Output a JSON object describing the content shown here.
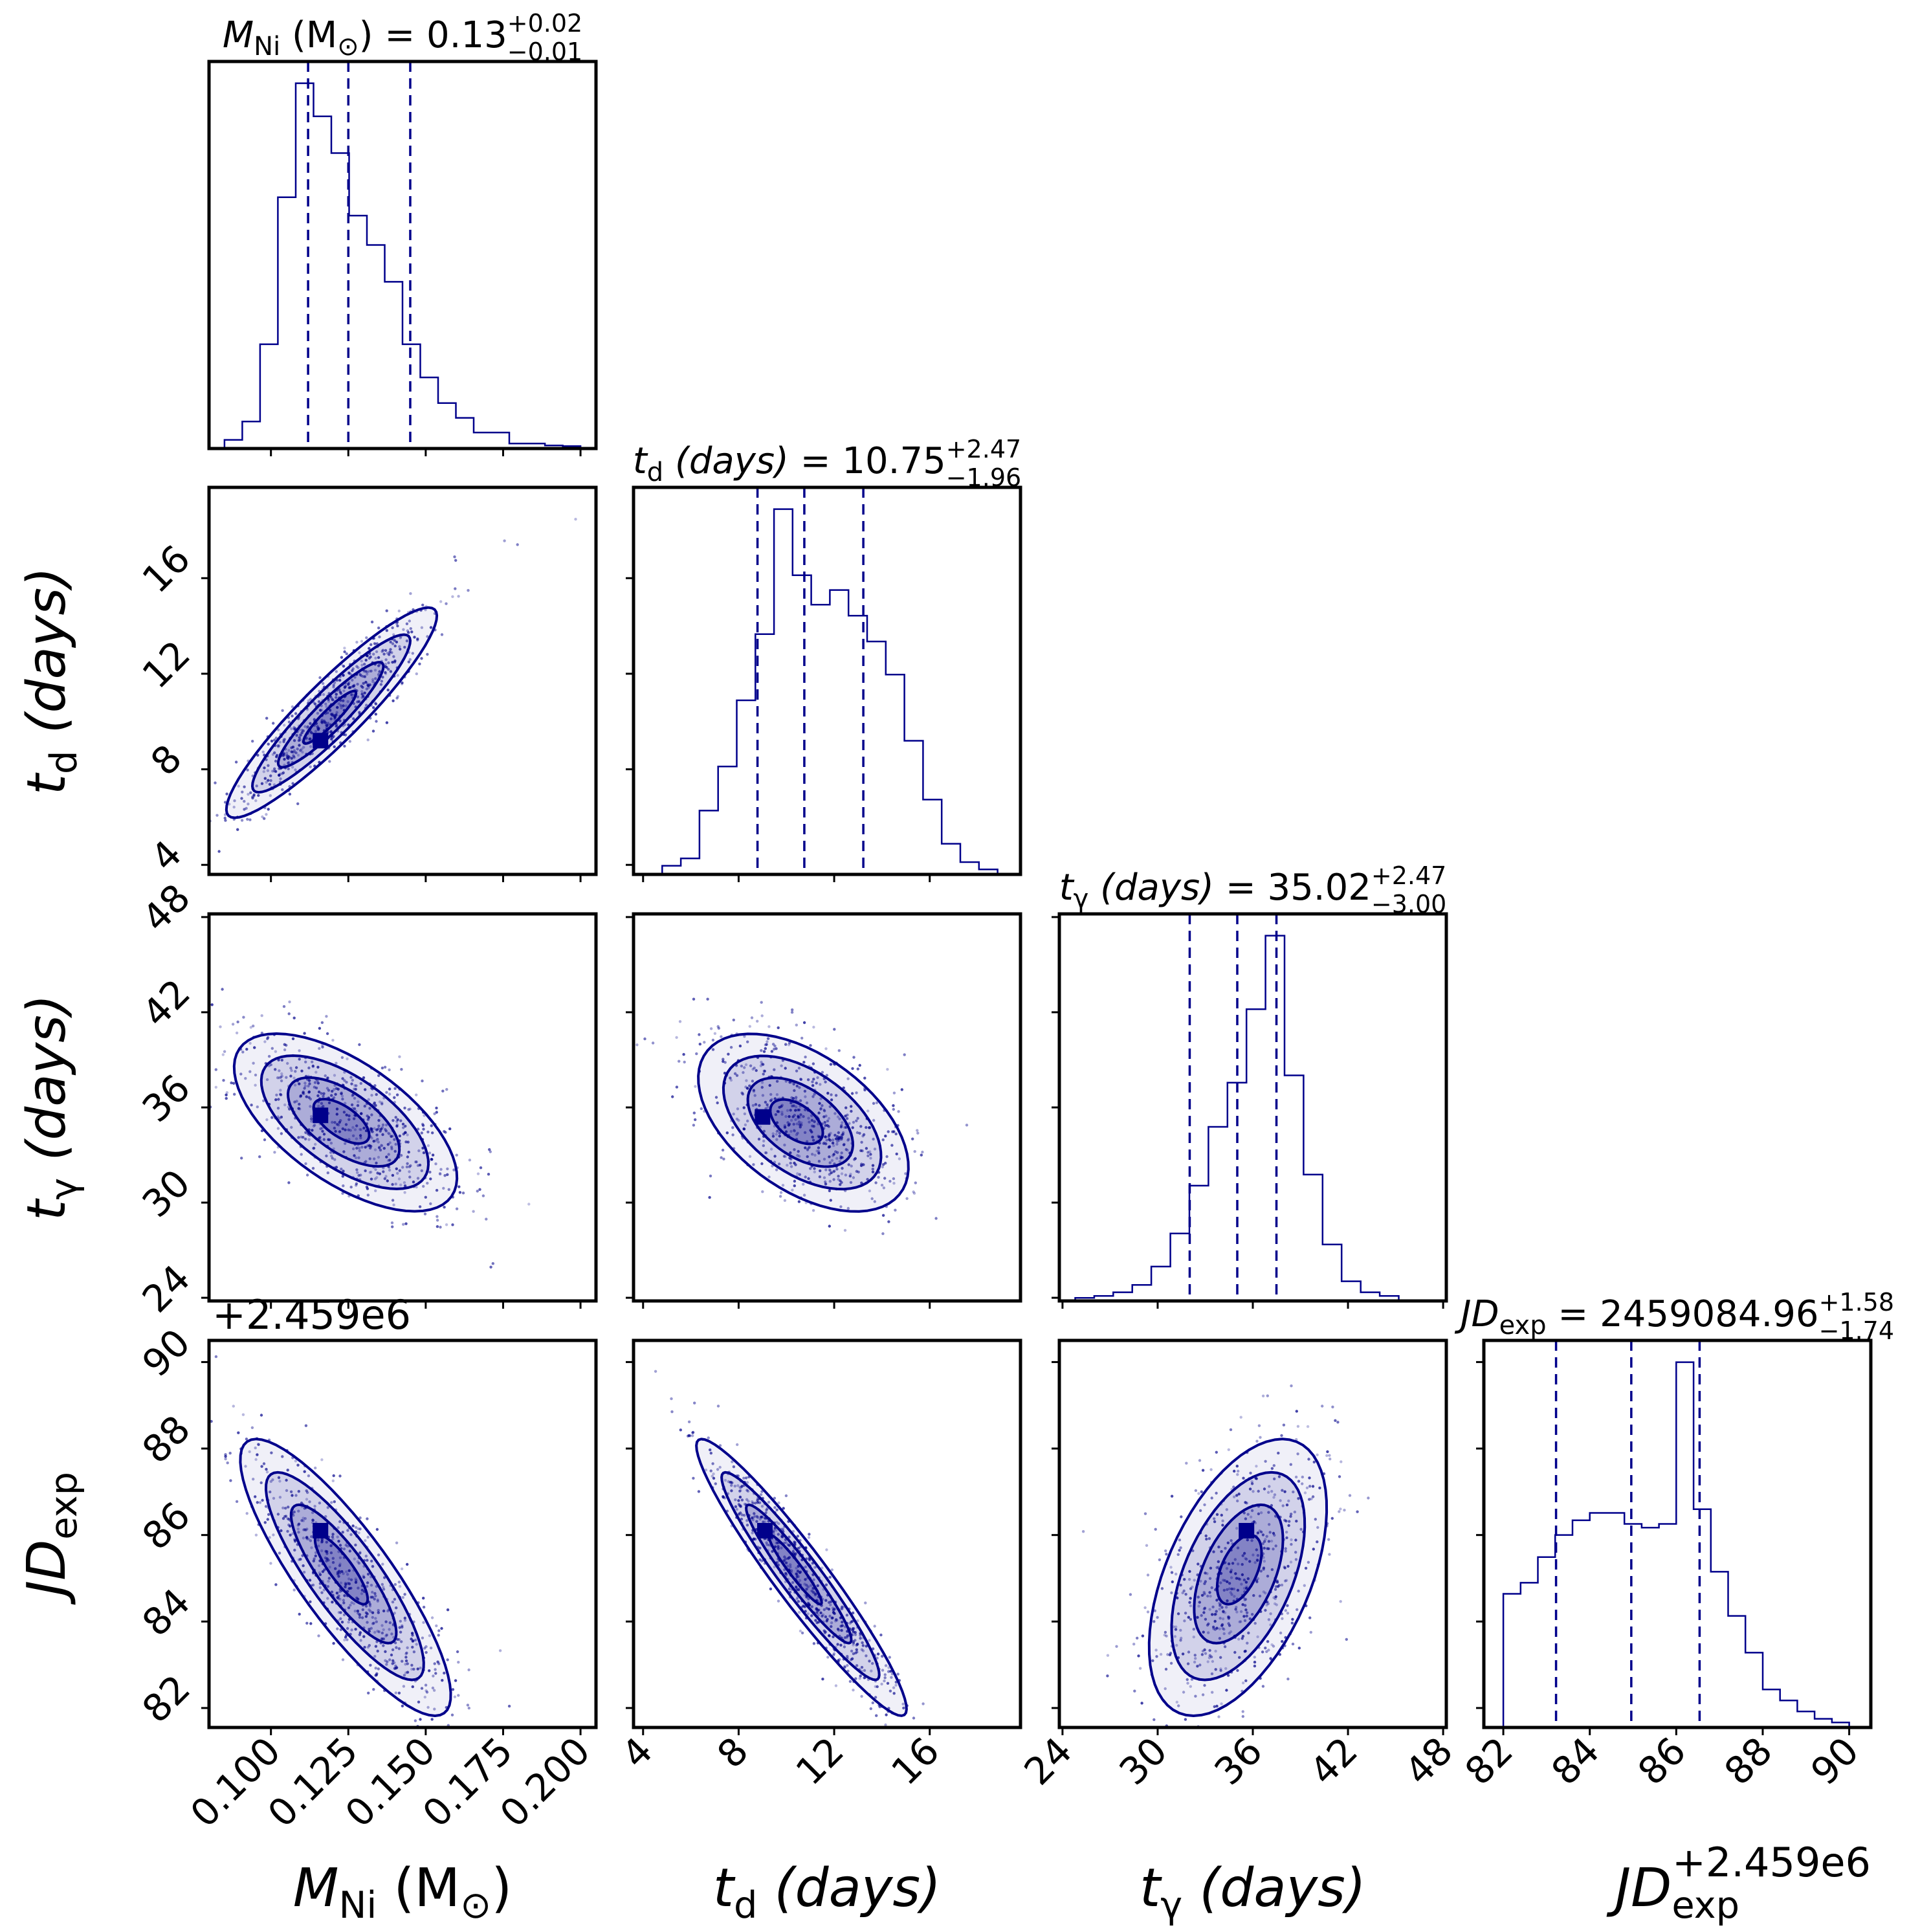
{
  "chart_data": {
    "type": "corner",
    "color": "#00008b",
    "parameters": [
      {
        "key": "MNi",
        "label_main": "M",
        "label_sub": "Ni",
        "label_unit": " (M",
        "label_unit_sub": "⊙",
        "label_close": ")",
        "range": [
          0.08,
          0.205
        ],
        "ticks": [
          "0.100",
          "0.125",
          "0.150",
          "0.175",
          "0.200"
        ],
        "tick_values": [
          0.1,
          0.125,
          0.15,
          0.175,
          0.2
        ]
      },
      {
        "key": "td",
        "label_main": "t",
        "label_sub": "d",
        "label_unit": " (days)",
        "range": [
          3.6,
          19.8
        ],
        "ticks": [
          "4",
          "8",
          "12",
          "16"
        ],
        "tick_values": [
          4,
          8,
          12,
          16
        ]
      },
      {
        "key": "tg",
        "label_main": "t",
        "label_sub": "γ",
        "label_unit": " (days)",
        "range": [
          23.8,
          48.2
        ],
        "ticks": [
          "24",
          "30",
          "36",
          "42",
          "48"
        ],
        "tick_values": [
          24,
          30,
          36,
          42,
          48
        ]
      },
      {
        "key": "JD",
        "label_main": "JD",
        "label_sub": "exp",
        "label_unit": "",
        "range": [
          81.55,
          90.5
        ],
        "ticks": [
          "82",
          "84",
          "86",
          "88",
          "90"
        ],
        "tick_values": [
          82,
          84,
          86,
          88,
          90
        ],
        "offset_text": "+2.459e6"
      }
    ],
    "titles": [
      {
        "main": "M",
        "sub": "Ni",
        "unit": " (M",
        "unit_sub": "⊙",
        "tail": ") = 0.13",
        "plus": "+0.02",
        "minus": "−0.01"
      },
      {
        "main": "t",
        "sub": "d",
        "unit": " (days)",
        "tail": " = 10.75",
        "plus": "+2.47",
        "minus": "−1.96"
      },
      {
        "main": "t",
        "sub": "γ",
        "unit": " (days)",
        "tail": " = 35.02",
        "plus": "+2.47",
        "minus": "−3.00"
      },
      {
        "main": "JD",
        "sub": "exp",
        "unit": "",
        "tail": " = 2459084.96",
        "plus": "+1.58",
        "minus": "−1.74"
      }
    ],
    "quantiles": [
      [
        0.112,
        0.125,
        0.145
      ],
      [
        8.79,
        10.75,
        13.22
      ],
      [
        32.02,
        35.02,
        37.49
      ],
      [
        83.22,
        84.96,
        86.54
      ]
    ],
    "histograms": [
      {
        "edges_start": 0.085,
        "bin_width": 0.00575,
        "counts": [
          0.02,
          0.07,
          0.28,
          0.68,
          0.99,
          0.9,
          0.8,
          0.63,
          0.55,
          0.45,
          0.28,
          0.19,
          0.12,
          0.08,
          0.04,
          0.04,
          0.01,
          0.01,
          0.005,
          0.003
        ]
      },
      {
        "edges_start": 4.8,
        "bin_width": 0.78,
        "counts": [
          0.02,
          0.04,
          0.17,
          0.29,
          0.47,
          0.65,
          0.99,
          0.81,
          0.73,
          0.77,
          0.7,
          0.63,
          0.54,
          0.36,
          0.2,
          0.08,
          0.03,
          0.01
        ]
      },
      {
        "edges_start": 24.8,
        "bin_width": 1.2,
        "counts": [
          0.005,
          0.01,
          0.02,
          0.04,
          0.09,
          0.18,
          0.31,
          0.47,
          0.59,
          0.79,
          0.99,
          0.61,
          0.34,
          0.15,
          0.05,
          0.02,
          0.01
        ]
      },
      {
        "edges_start": 82.0,
        "bin_width": 0.4,
        "counts": [
          0.36,
          0.39,
          0.46,
          0.52,
          0.56,
          0.58,
          0.58,
          0.55,
          0.54,
          0.55,
          0.99,
          0.59,
          0.42,
          0.3,
          0.2,
          0.1,
          0.07,
          0.04,
          0.02,
          0.01
        ]
      }
    ],
    "pairs": [
      {
        "row": 1,
        "col": 0,
        "mean": [
          0.12,
          10.5
        ],
        "sd": [
          0.017,
          2.2
        ],
        "rho": 0.92,
        "mode": [
          0.116,
          9.2
        ],
        "n_points": 650,
        "seed": 11
      },
      {
        "row": 2,
        "col": 0,
        "mean": [
          0.125,
          35.0
        ],
        "sd": [
          0.018,
          2.8
        ],
        "rho": -0.62,
        "mode": [
          0.116,
          35.5
        ],
        "n_points": 650,
        "seed": 23
      },
      {
        "row": 2,
        "col": 1,
        "mean": [
          10.9,
          35.0
        ],
        "sd": [
          2.2,
          2.8
        ],
        "rho": -0.5,
        "mode": [
          9.0,
          35.4
        ],
        "n_points": 650,
        "seed": 37
      },
      {
        "row": 3,
        "col": 0,
        "mean": [
          0.125,
          84.9
        ],
        "sd": [
          0.017,
          1.6
        ],
        "rho": -0.85,
        "mode": [
          0.116,
          86.1
        ],
        "n_points": 650,
        "seed": 41
      },
      {
        "row": 3,
        "col": 1,
        "mean": [
          10.8,
          84.9
        ],
        "sd": [
          2.2,
          1.6
        ],
        "rho": -0.95,
        "mode": [
          9.1,
          86.1
        ],
        "n_points": 650,
        "seed": 53
      },
      {
        "row": 3,
        "col": 2,
        "mean": [
          35.0,
          84.9
        ],
        "sd": [
          2.8,
          1.6
        ],
        "rho": 0.5,
        "mode": [
          35.6,
          86.1
        ],
        "n_points": 650,
        "seed": 67
      }
    ],
    "offset_text_left": "+2.459e6",
    "offset_text_bottom": "+2.459e6"
  }
}
